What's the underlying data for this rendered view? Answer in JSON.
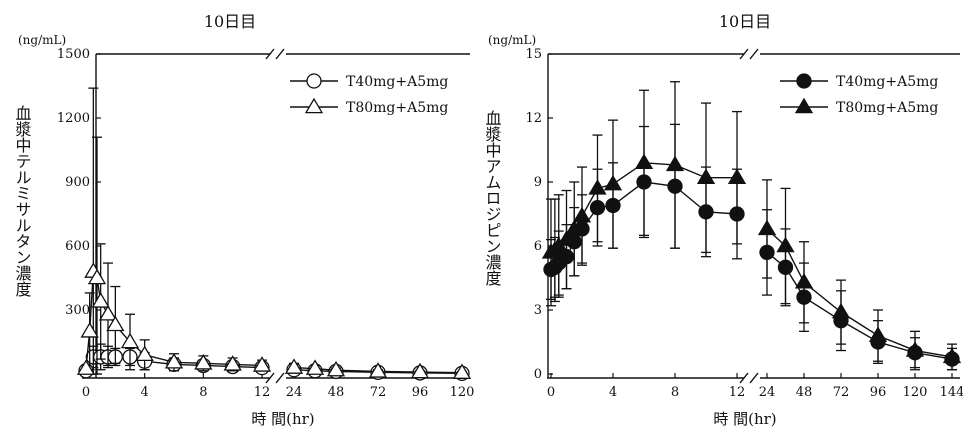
{
  "chart_data": [
    {
      "type": "line",
      "title": "10日目",
      "unit_label": "(ng/mL)",
      "ylabel": "血漿中テルミサルタン濃度",
      "xlabel": "時 間(hr)",
      "ylim": [
        0,
        1500
      ],
      "yticks": [
        0,
        300,
        600,
        900,
        1200,
        1500
      ],
      "yticklabels": [
        "0",
        "300",
        "600",
        "900",
        "1200",
        "1500"
      ],
      "x_segments": [
        {
          "range": [
            0,
            12
          ],
          "ticks": [
            0,
            4,
            8,
            12
          ],
          "ticklabels": [
            "0",
            "4",
            "8",
            "12"
          ]
        },
        {
          "range": [
            24,
            120
          ],
          "ticks": [
            24,
            48,
            72,
            96,
            120
          ],
          "ticklabels": [
            "24",
            "48",
            "72",
            "96",
            "120"
          ]
        }
      ],
      "legend": "top-right",
      "series": [
        {
          "name": "T40mg+A5mg",
          "marker": "circle-open",
          "points": [
            {
              "x": 0,
              "y": 15,
              "err": 10
            },
            {
              "x": 0.5,
              "y": 80,
              "err": 50
            },
            {
              "x": 1,
              "y": 80,
              "err": 60
            },
            {
              "x": 1.5,
              "y": 80,
              "err": 50
            },
            {
              "x": 2,
              "y": 80,
              "err": 40
            },
            {
              "x": 3,
              "y": 80,
              "err": 40
            },
            {
              "x": 4,
              "y": 60,
              "err": 40
            },
            {
              "x": 6,
              "y": 45,
              "err": 30
            },
            {
              "x": 8,
              "y": 40,
              "err": 25
            },
            {
              "x": 10,
              "y": 35,
              "err": 20
            },
            {
              "x": 12,
              "y": 30,
              "err": 15
            },
            {
              "x": 24,
              "y": 20,
              "err": 10
            },
            {
              "x": 36,
              "y": 15,
              "err": 8
            },
            {
              "x": 48,
              "y": 12,
              "err": 6
            },
            {
              "x": 72,
              "y": 8,
              "err": 4
            },
            {
              "x": 96,
              "y": 5,
              "err": 3
            },
            {
              "x": 120,
              "y": 3,
              "err": 2
            }
          ]
        },
        {
          "name": "T80mg+A5mg",
          "marker": "triangle-open",
          "points": [
            {
              "x": 0,
              "y": 25,
              "err": 15
            },
            {
              "x": 0.25,
              "y": 200,
              "err": 180
            },
            {
              "x": 0.5,
              "y": 480,
              "err": 860
            },
            {
              "x": 0.75,
              "y": 450,
              "err": 660
            },
            {
              "x": 1,
              "y": 340,
              "err": 270
            },
            {
              "x": 1.5,
              "y": 280,
              "err": 240
            },
            {
              "x": 2,
              "y": 230,
              "err": 180
            },
            {
              "x": 3,
              "y": 150,
              "err": 130
            },
            {
              "x": 4,
              "y": 90,
              "err": 70
            },
            {
              "x": 6,
              "y": 55,
              "err": 40
            },
            {
              "x": 8,
              "y": 50,
              "err": 35
            },
            {
              "x": 10,
              "y": 45,
              "err": 30
            },
            {
              "x": 12,
              "y": 40,
              "err": 25
            },
            {
              "x": 24,
              "y": 30,
              "err": 20
            },
            {
              "x": 36,
              "y": 25,
              "err": 15
            },
            {
              "x": 48,
              "y": 18,
              "err": 10
            },
            {
              "x": 72,
              "y": 12,
              "err": 8
            },
            {
              "x": 96,
              "y": 9,
              "err": 6
            },
            {
              "x": 120,
              "y": 6,
              "err": 4
            }
          ]
        }
      ]
    },
    {
      "type": "line",
      "title": "10日目",
      "unit_label": "(ng/mL)",
      "ylabel": "血漿中アムロジピン濃度",
      "xlabel": "時 間(hr)",
      "ylim": [
        0,
        15
      ],
      "yticks": [
        0,
        3,
        6,
        9,
        12,
        15
      ],
      "yticklabels": [
        "0",
        "3",
        "6",
        "9",
        "12",
        "15"
      ],
      "x_segments": [
        {
          "range": [
            0,
            12
          ],
          "ticks": [
            0,
            4,
            8,
            12
          ],
          "ticklabels": [
            "0",
            "4",
            "8",
            "12"
          ]
        },
        {
          "range": [
            24,
            144
          ],
          "ticks": [
            24,
            48,
            72,
            96,
            120,
            144
          ],
          "ticklabels": [
            "24",
            "48",
            "72",
            "96",
            "120",
            "144"
          ]
        }
      ],
      "legend": "top-right",
      "series": [
        {
          "name": "T40mg+A5mg",
          "marker": "circle-filled",
          "points": [
            {
              "x": 0,
              "y": 4.9,
              "err": 1.4
            },
            {
              "x": 0.25,
              "y": 5.0,
              "err": 1.4
            },
            {
              "x": 0.5,
              "y": 5.2,
              "err": 1.5
            },
            {
              "x": 1,
              "y": 5.5,
              "err": 1.5
            },
            {
              "x": 1.5,
              "y": 6.2,
              "err": 1.6
            },
            {
              "x": 2,
              "y": 6.8,
              "err": 1.6
            },
            {
              "x": 3,
              "y": 7.8,
              "err": 1.8
            },
            {
              "x": 4,
              "y": 7.9,
              "err": 2.0
            },
            {
              "x": 6,
              "y": 9.0,
              "err": 2.6
            },
            {
              "x": 8,
              "y": 8.8,
              "err": 2.9
            },
            {
              "x": 10,
              "y": 7.6,
              "err": 2.1
            },
            {
              "x": 12,
              "y": 7.5,
              "err": 2.1
            },
            {
              "x": 24,
              "y": 5.7,
              "err": 2.0
            },
            {
              "x": 36,
              "y": 5.0,
              "err": 1.8
            },
            {
              "x": 48,
              "y": 3.6,
              "err": 1.6
            },
            {
              "x": 72,
              "y": 2.5,
              "err": 1.4
            },
            {
              "x": 96,
              "y": 1.5,
              "err": 1.0
            },
            {
              "x": 120,
              "y": 1.0,
              "err": 0.7
            },
            {
              "x": 144,
              "y": 0.7,
              "err": 0.5
            }
          ]
        },
        {
          "name": "T80mg+A5mg",
          "marker": "triangle-filled",
          "points": [
            {
              "x": 0,
              "y": 5.7,
              "err": 2.5
            },
            {
              "x": 0.25,
              "y": 5.8,
              "err": 2.4
            },
            {
              "x": 0.5,
              "y": 6.0,
              "err": 2.4
            },
            {
              "x": 1,
              "y": 6.3,
              "err": 2.3
            },
            {
              "x": 1.5,
              "y": 6.8,
              "err": 2.2
            },
            {
              "x": 2,
              "y": 7.4,
              "err": 2.3
            },
            {
              "x": 3,
              "y": 8.7,
              "err": 2.5
            },
            {
              "x": 4,
              "y": 8.9,
              "err": 3.0
            },
            {
              "x": 6,
              "y": 9.9,
              "err": 3.4
            },
            {
              "x": 8,
              "y": 9.8,
              "err": 3.9
            },
            {
              "x": 10,
              "y": 9.2,
              "err": 3.5
            },
            {
              "x": 12,
              "y": 9.2,
              "err": 3.1
            },
            {
              "x": 24,
              "y": 6.8,
              "err": 2.3
            },
            {
              "x": 36,
              "y": 6.0,
              "err": 2.7
            },
            {
              "x": 48,
              "y": 4.3,
              "err": 1.9
            },
            {
              "x": 72,
              "y": 2.9,
              "err": 1.5
            },
            {
              "x": 96,
              "y": 1.8,
              "err": 1.2
            },
            {
              "x": 120,
              "y": 1.1,
              "err": 0.9
            },
            {
              "x": 144,
              "y": 0.8,
              "err": 0.6
            }
          ]
        }
      ]
    }
  ]
}
